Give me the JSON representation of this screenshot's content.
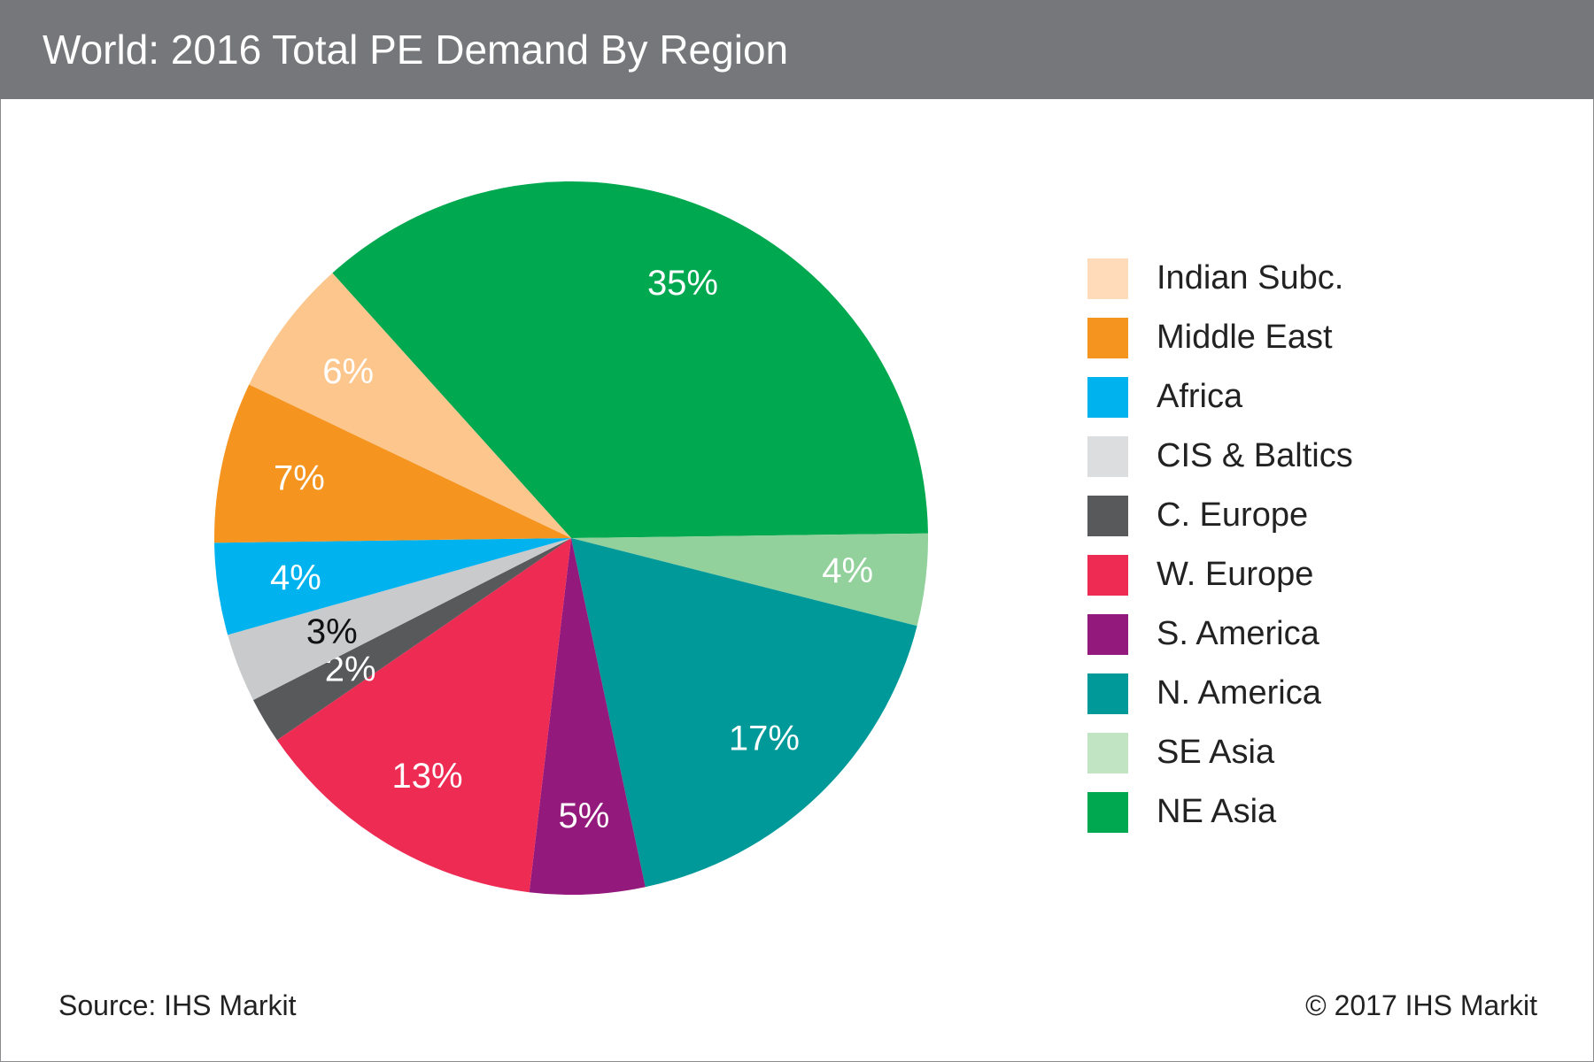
{
  "header": {
    "title": "World: 2016 Total PE Demand By Region"
  },
  "footer": {
    "source": "Source: IHS Markit",
    "copyright": "© 2017 IHS Markit"
  },
  "chart_data": {
    "type": "pie",
    "title": "World: 2016 Total PE Demand By Region",
    "legend_position": "right",
    "slices": [
      {
        "name": "NE Asia",
        "value": 35,
        "label": "35%",
        "color": "#00a84f",
        "label_color": "#ffffff"
      },
      {
        "name": "SE Asia",
        "value": 4,
        "label": "4%",
        "color": "#92d19b",
        "label_color": "#ffffff"
      },
      {
        "name": "N. America",
        "value": 17,
        "label": "17%",
        "color": "#009999",
        "label_color": "#ffffff"
      },
      {
        "name": "S. America",
        "value": 5,
        "label": "5%",
        "color": "#93197c",
        "label_color": "#ffffff"
      },
      {
        "name": "W. Europe",
        "value": 13,
        "label": "13%",
        "color": "#ee2b53",
        "label_color": "#ffffff"
      },
      {
        "name": "C. Europe",
        "value": 2,
        "label": "2%",
        "color": "#58595b",
        "label_color": "#ffffff"
      },
      {
        "name": "CIS & Baltics",
        "value": 3,
        "label": "3%",
        "color": "#c9cacb",
        "label_color": "#111111"
      },
      {
        "name": "Africa",
        "value": 4,
        "label": "4%",
        "color": "#00b3ef",
        "label_color": "#ffffff"
      },
      {
        "name": "Middle East",
        "value": 7,
        "label": "7%",
        "color": "#f5941f",
        "label_color": "#ffffff"
      },
      {
        "name": "Indian Subc.",
        "value": 6,
        "label": "6%",
        "color": "#fdc68c",
        "label_color": "#ffffff"
      }
    ],
    "legend": [
      {
        "name": "Indian Subc.",
        "color": "#ffdbb9"
      },
      {
        "name": "Middle East",
        "color": "#f5941f"
      },
      {
        "name": "Africa",
        "color": "#00b3ef"
      },
      {
        "name": "CIS & Baltics",
        "color": "#dcddde"
      },
      {
        "name": "C. Europe",
        "color": "#58595b"
      },
      {
        "name": "W. Europe",
        "color": "#ee2b53"
      },
      {
        "name": "S. America",
        "color": "#93197c"
      },
      {
        "name": "N. America",
        "color": "#009999"
      },
      {
        "name": "SE Asia",
        "color": "#c1e4c3"
      },
      {
        "name": "NE Asia",
        "color": "#00a84f"
      }
    ]
  }
}
